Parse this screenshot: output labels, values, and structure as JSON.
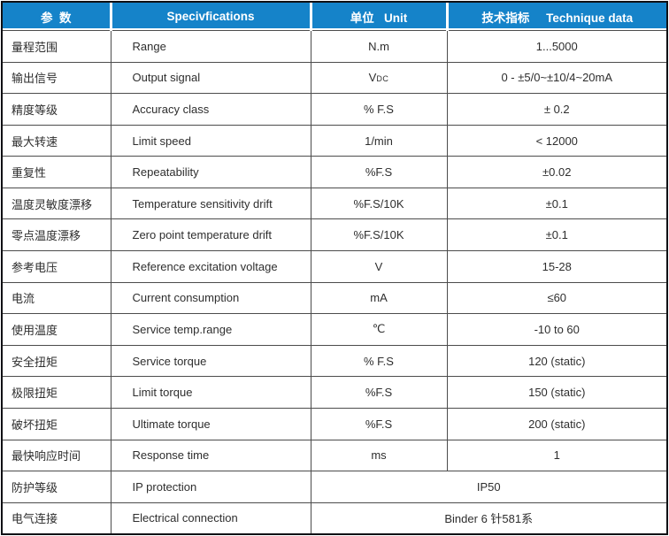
{
  "header": {
    "param": "参  数",
    "spec": "Specivfications",
    "unit": "单位   Unit",
    "value": "技术指标     Technique data"
  },
  "colors": {
    "header_bg": "#1583c9",
    "header_text": "#ffffff",
    "body_text": "#2e2e2e",
    "grid_line": "#4c4c4c",
    "outer_border": "#101014"
  },
  "rows": [
    {
      "param": "量程范围",
      "spec": "Range",
      "unit": "N.m",
      "value": "1...5000"
    },
    {
      "param": "输出信号",
      "spec": "Output signal",
      "unit_main": "V",
      "unit_sub": "DC",
      "value": "0 - ±5/0~±10/4~20mA"
    },
    {
      "param": "精度等级",
      "spec": "Accuracy class",
      "unit": "% F.S",
      "value": "± 0.2"
    },
    {
      "param": "最大转速",
      "spec": "Limit speed",
      "unit": "1/min",
      "value": "< 12000"
    },
    {
      "param": "重复性",
      "spec": "Repeatability",
      "unit": "%F.S",
      "value": "±0.02"
    },
    {
      "param": "温度灵敏度漂移",
      "spec": "Temperature sensitivity drift",
      "unit": "%F.S/10K",
      "value": "±0.1"
    },
    {
      "param": "零点温度漂移",
      "spec": "Zero point temperature drift",
      "unit": "%F.S/10K",
      "value": "±0.1"
    },
    {
      "param": "参考电压",
      "spec": "Reference excitation voltage",
      "unit": "V",
      "value": "15-28"
    },
    {
      "param": "电流",
      "spec": "Current consumption",
      "unit": "mA",
      "value": "≤60"
    },
    {
      "param": "使用温度",
      "spec": "Service temp.range",
      "unit": "℃",
      "value": "-10 to 60"
    },
    {
      "param": "安全扭矩",
      "spec": "Service torque",
      "unit": "% F.S",
      "value": "120 (static)"
    },
    {
      "param": "极限扭矩",
      "spec": "Limit torque",
      "unit": "%F.S",
      "value": "150 (static)"
    },
    {
      "param": "破坏扭矩",
      "spec": "Ultimate torque",
      "unit": "%F.S",
      "value": "200 (static)"
    },
    {
      "param": "最快响应时间",
      "spec": "Response time",
      "unit": "ms",
      "value": "1"
    },
    {
      "param": "防护等级",
      "spec": "IP protection",
      "merged": true,
      "value": "IP50"
    },
    {
      "param": "电气连接",
      "spec": "Electrical connection",
      "merged": true,
      "value": "Binder 6 针581系"
    }
  ]
}
